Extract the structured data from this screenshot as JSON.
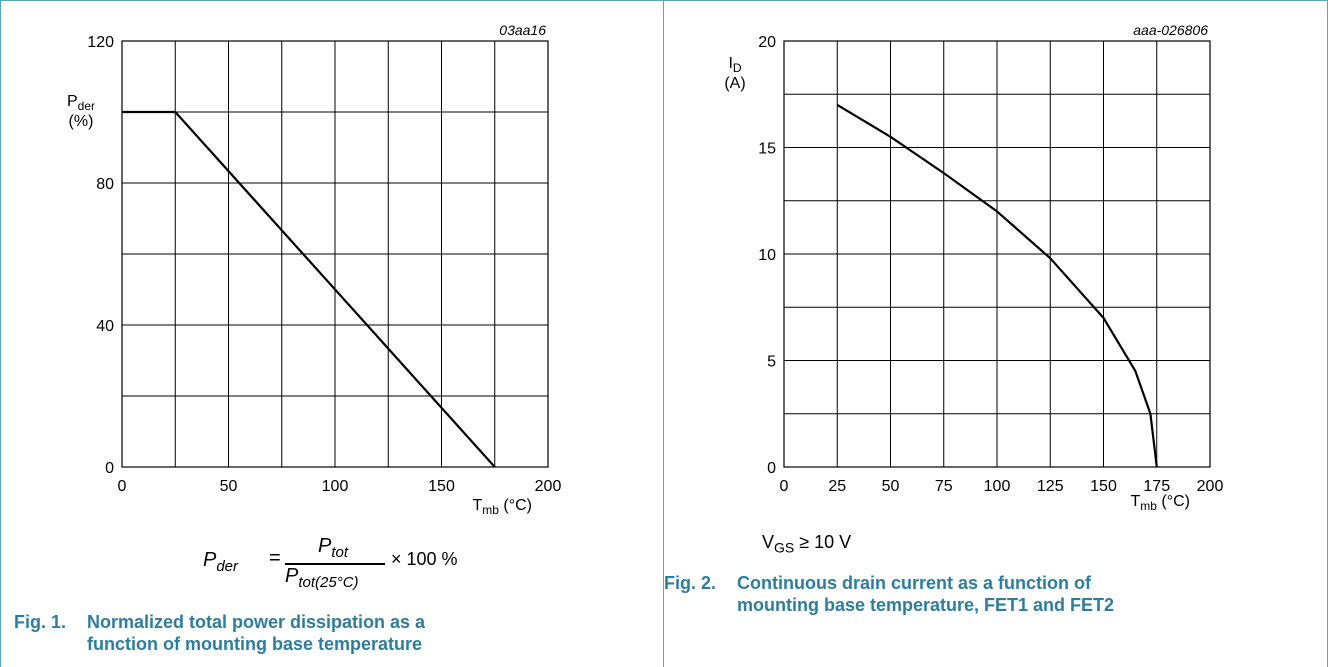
{
  "chart_data": [
    {
      "type": "line",
      "figure_code": "03aa16",
      "title": "",
      "xlabel_main": "T",
      "xlabel_sub": "mb",
      "xlabel_unit": "(°C)",
      "ylabel_main": "P",
      "ylabel_sub": "der",
      "ylabel_unit": "(%)",
      "xlim": [
        0,
        200
      ],
      "ylim": [
        0,
        120
      ],
      "x_ticks": [
        0,
        50,
        100,
        150,
        200
      ],
      "y_ticks": [
        0,
        40,
        80,
        120
      ],
      "grid": true,
      "series": [
        {
          "x": [
            0,
            25,
            175
          ],
          "y": [
            100,
            100,
            0
          ]
        }
      ]
    },
    {
      "type": "line",
      "figure_code": "aaa-026806",
      "title": "",
      "xlabel_main": "T",
      "xlabel_sub": "mb",
      "xlabel_unit": "(°C)",
      "ylabel_main": "I",
      "ylabel_sub": "D",
      "ylabel_unit": "(A)",
      "xlim": [
        0,
        200
      ],
      "ylim": [
        0,
        20
      ],
      "x_ticks": [
        0,
        25,
        50,
        75,
        100,
        125,
        150,
        175,
        200
      ],
      "y_ticks": [
        0,
        5,
        10,
        15,
        20
      ],
      "grid": true,
      "series": [
        {
          "x": [
            25,
            50,
            75,
            100,
            125,
            150,
            165,
            172,
            175
          ],
          "y": [
            17.0,
            15.5,
            13.8,
            12.0,
            9.8,
            7.0,
            4.5,
            2.5,
            0
          ]
        }
      ]
    }
  ],
  "fig1": {
    "formula_lhs": "P",
    "formula_lhs_sub": "der",
    "formula_eq": "=",
    "formula_num": "P",
    "formula_num_sub": "tot",
    "formula_den": "P",
    "formula_den_sub": "tot(25°C)",
    "formula_mult": "× 100 %",
    "caption_num": "Fig. 1.",
    "caption_line1": "Normalized total power dissipation as a",
    "caption_line2": "function of mounting base temperature"
  },
  "fig2": {
    "condition_main": "V",
    "condition_sub": "GS",
    "condition_rest": " ≥ 10 V",
    "caption_num": "Fig. 2.",
    "caption_line1": "Continuous drain current as a function of",
    "caption_line2": "mounting base temperature, FET1 and FET2"
  },
  "colors": {
    "caption": "#2e7d9e",
    "frame": "#5fa3bd",
    "line": "#000000",
    "grid": "#000000"
  }
}
